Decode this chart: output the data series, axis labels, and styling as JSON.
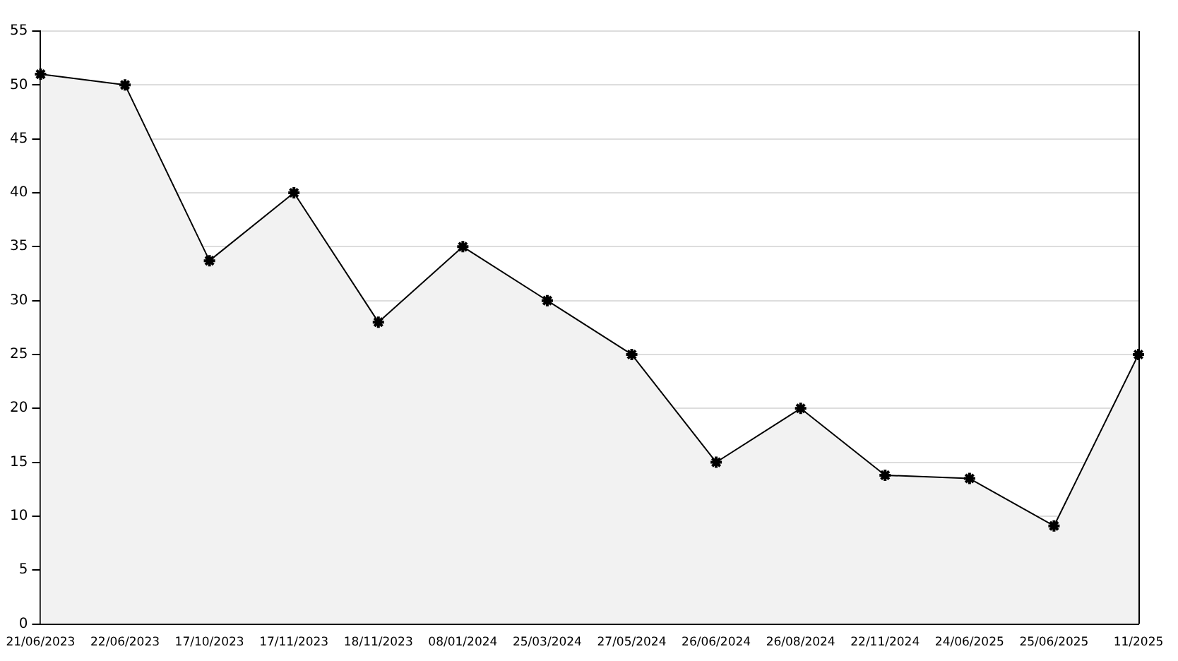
{
  "chart_data": {
    "type": "area",
    "categories": [
      "21/06/2023",
      "22/06/2023",
      "17/10/2023",
      "17/11/2023",
      "18/11/2023",
      "08/01/2024",
      "25/03/2024",
      "27/05/2024",
      "26/06/2024",
      "26/08/2024",
      "22/11/2024",
      "24/06/2025",
      "25/06/2025",
      "11/2025"
    ],
    "series": [
      {
        "color": "#000000",
        "values": [
          51,
          50,
          33.7,
          40,
          28,
          35,
          30,
          25,
          15,
          20,
          13.8,
          13.5,
          9.1,
          25
        ]
      }
    ],
    "ylim": [
      0,
      55
    ],
    "yticks": [
      0,
      5,
      10,
      15,
      20,
      25,
      30,
      35,
      40,
      45,
      50,
      55
    ],
    "grid": "y",
    "legend": false,
    "marker": "cross",
    "line_style": "solid"
  }
}
